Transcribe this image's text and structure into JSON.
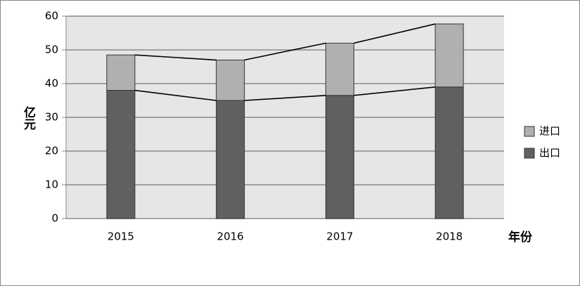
{
  "chart_data": {
    "type": "stacked_bar",
    "categories": [
      "2015",
      "2016",
      "2017",
      "2018"
    ],
    "series": [
      {
        "name": "出口",
        "color": "#606060",
        "values": [
          38,
          35,
          36.5,
          39
        ]
      },
      {
        "name": "进口",
        "color": "#b0b0b0",
        "values": [
          10.5,
          12,
          15.5,
          18.7
        ]
      }
    ],
    "ylim": [
      0,
      60
    ],
    "yticks": [
      0,
      10,
      20,
      30,
      40,
      50,
      60
    ],
    "y_label": "亿元",
    "x_label": "年份",
    "grid": true,
    "series_lines": true,
    "legend": "right"
  }
}
